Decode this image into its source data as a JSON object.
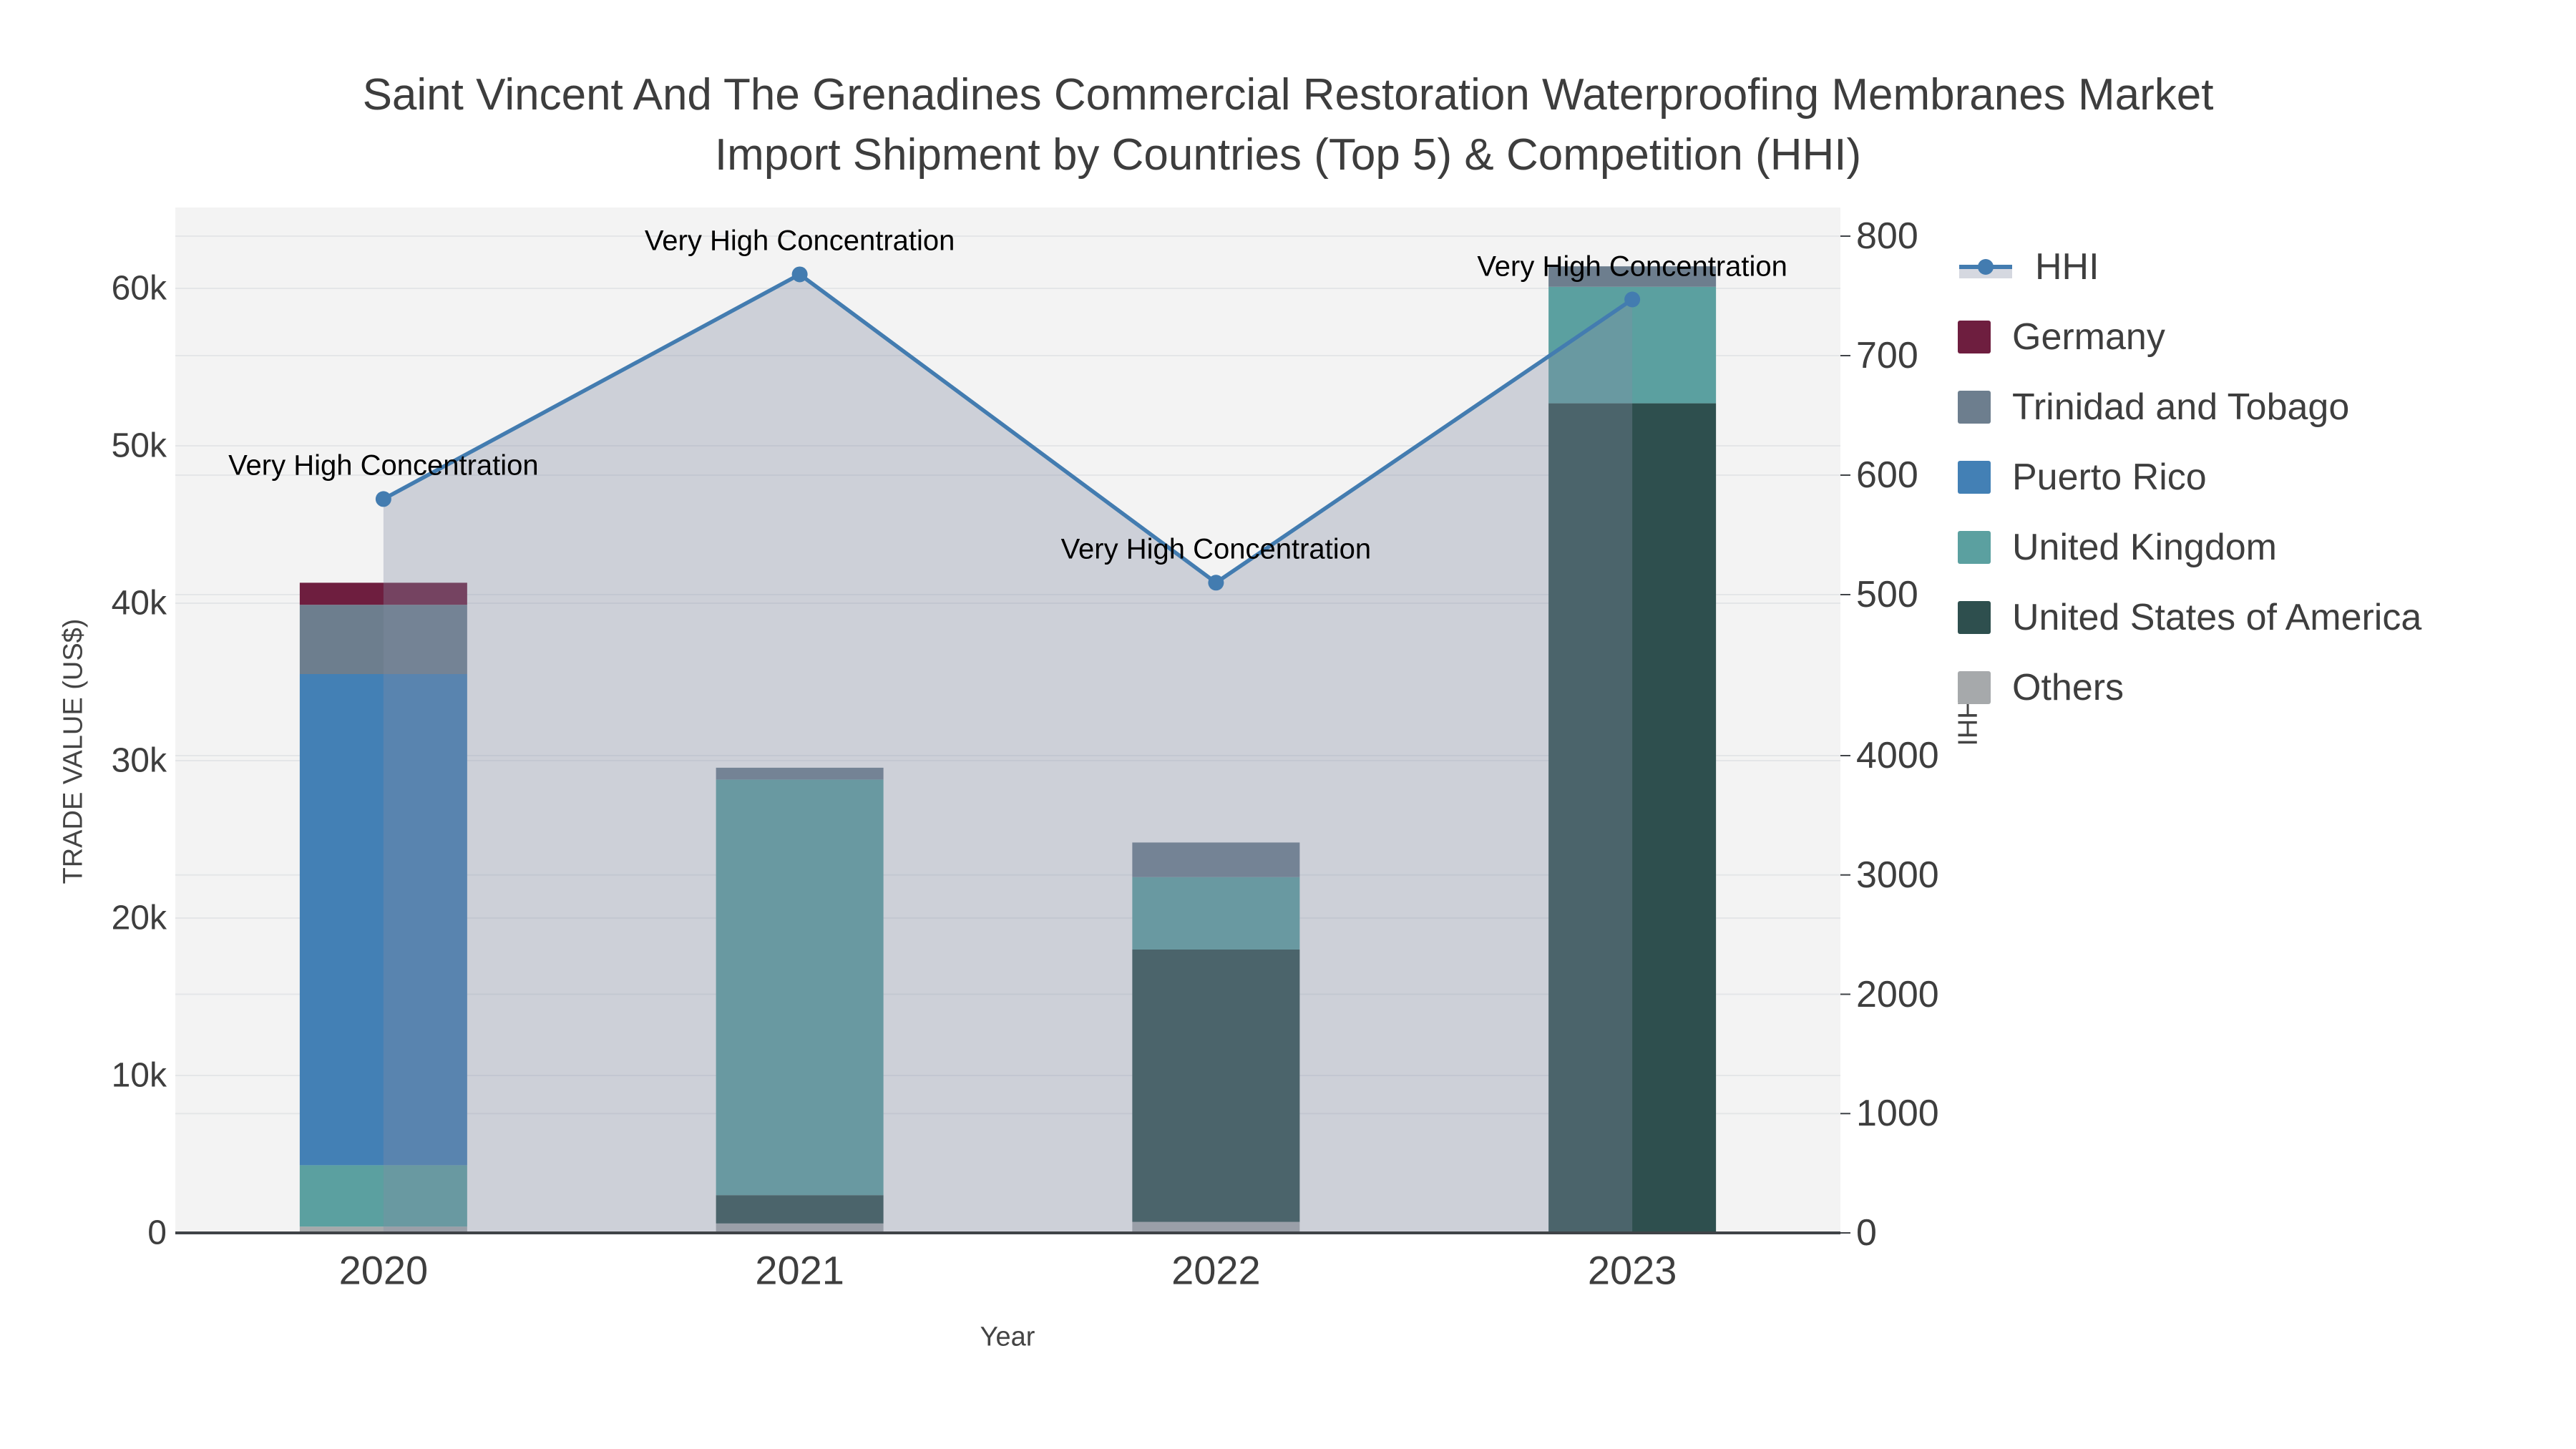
{
  "title": {
    "line1": "Saint Vincent And The Grenadines Commercial Restoration Waterproofing Membranes Market",
    "line2": "Import Shipment by Countries (Top 5) & Competition (HHI)"
  },
  "chart_data": {
    "type": "bar+line combo (stacked bars with HHI line and shaded area)",
    "x": [
      "2020",
      "2021",
      "2022",
      "2023"
    ],
    "bar_series": [
      {
        "name": "Germany",
        "color": "#6e1e3f",
        "values": [
          1400,
          0,
          0,
          0
        ]
      },
      {
        "name": "Trinidad and Tobago",
        "color": "#6d7e8e",
        "values": [
          4400,
          750,
          2200,
          1300
        ]
      },
      {
        "name": "Puerto Rico",
        "color": "#4380b5",
        "values": [
          31200,
          0,
          0,
          0
        ]
      },
      {
        "name": "United Kingdom",
        "color": "#5ba0a0",
        "values": [
          3900,
          26400,
          4600,
          7400
        ]
      },
      {
        "name": "United States of America",
        "color": "#2e4f4e",
        "values": [
          0,
          1800,
          17300,
          52700
        ]
      },
      {
        "name": "Others",
        "color": "#a6a9ab",
        "values": [
          400,
          600,
          700,
          0
        ]
      }
    ],
    "stack_order_bottom_to_top": [
      "Others",
      "United States of America",
      "United Kingdom",
      "Puerto Rico",
      "Trinidad and Tobago",
      "Germany"
    ],
    "line_series": {
      "name": "HHI",
      "color": "#437cb0",
      "area_fill_color": "rgba(132,142,164,0.34)",
      "values": [
        580,
        768,
        510,
        747
      ]
    },
    "annotations": [
      "Very High Concentration",
      "Very High Concentration",
      "Very High Concentration",
      "Very High Concentration"
    ],
    "left_axis": {
      "title": "TRADE VALUE (US$)",
      "tick_labels": [
        "0",
        "10k",
        "20k",
        "30k",
        "40k",
        "50k",
        "60k"
      ],
      "tick_values": [
        0,
        10000,
        20000,
        30000,
        40000,
        50000,
        60000
      ],
      "max": 65100
    },
    "right_axis": {
      "title": "HHI",
      "upper_tick_values": [
        500,
        600,
        700,
        800
      ],
      "lower_tick_values": [
        0,
        1000,
        2000,
        3000,
        4000
      ]
    },
    "x_axis": {
      "title": "Year"
    },
    "layout_hints": {
      "grid": true,
      "legend_position": "right",
      "plot_background": "#f3f3f3"
    }
  },
  "colors": {
    "plot_background": "#f3f3f3",
    "gridline": "#e4e6e8",
    "axis_line": "#3f4347",
    "text": "#3e3e3e",
    "title_text": "#3d3d3d",
    "annotation_text": "#000000"
  }
}
